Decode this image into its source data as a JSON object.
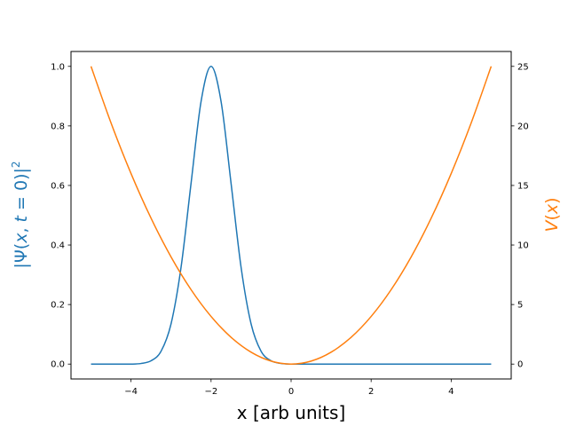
{
  "chart_data": {
    "type": "line",
    "title": "",
    "xlabel": "x [arb units]",
    "ylabel_left_parts": [
      "|Ψ(",
      "x",
      ", ",
      "t",
      " = 0)|",
      "2"
    ],
    "ylabel_right_parts": [
      "V",
      "(",
      "x",
      ")"
    ],
    "xlim": [
      -5.5,
      5.5
    ],
    "ylim_left": [
      -0.05,
      1.05
    ],
    "ylim_right": [
      -1.25,
      26.25
    ],
    "xticks": [
      -4,
      -2,
      0,
      2,
      4
    ],
    "xtick_labels": [
      "−4",
      "−2",
      "0",
      "2",
      "4"
    ],
    "yticks_left": [
      0.0,
      0.2,
      0.4,
      0.6,
      0.8,
      1.0
    ],
    "ytick_labels_left": [
      "0.0",
      "0.2",
      "0.4",
      "0.6",
      "0.8",
      "1.0"
    ],
    "yticks_right": [
      0,
      5,
      10,
      15,
      20,
      25
    ],
    "ytick_labels_right": [
      "0",
      "5",
      "10",
      "15",
      "20",
      "25"
    ],
    "grid": false,
    "series": [
      {
        "axis": "left",
        "color": "#1f77b4",
        "x": [
          -5.0,
          -4.5,
          -4.0,
          -3.75,
          -3.5,
          -3.25,
          -3.0,
          -2.75,
          -2.5,
          -2.25,
          -2.0,
          -1.75,
          -1.5,
          -1.25,
          -1.0,
          -0.75,
          -0.5,
          -0.25,
          0.0,
          0.5,
          1.0,
          2.0,
          3.0,
          4.0,
          5.0
        ],
        "values": [
          0.0,
          0.0,
          0.0,
          0.002,
          0.011,
          0.043,
          0.135,
          0.325,
          0.607,
          0.882,
          1.0,
          0.882,
          0.607,
          0.325,
          0.135,
          0.043,
          0.011,
          0.002,
          0.0,
          0.0,
          0.0,
          0.0,
          0.0,
          0.0,
          0.0
        ]
      },
      {
        "axis": "right",
        "color": "#ff7f0e",
        "x": [
          -5.0,
          -4.5,
          -4.0,
          -3.5,
          -3.0,
          -2.5,
          -2.0,
          -1.5,
          -1.0,
          -0.5,
          0.0,
          0.5,
          1.0,
          1.5,
          2.0,
          2.5,
          3.0,
          3.5,
          4.0,
          4.5,
          5.0
        ],
        "values": [
          25.0,
          20.25,
          16.0,
          12.25,
          9.0,
          6.25,
          4.0,
          2.25,
          1.0,
          0.25,
          0.0,
          0.25,
          1.0,
          2.25,
          4.0,
          6.25,
          9.0,
          12.25,
          16.0,
          20.25,
          25.0
        ]
      }
    ]
  }
}
